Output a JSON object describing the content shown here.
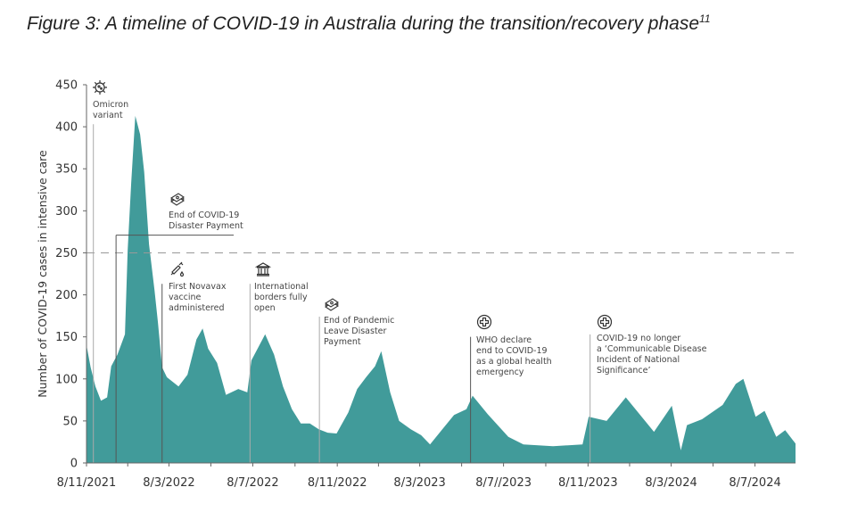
{
  "title": {
    "text": "Figure 3: A timeline of COVID-19 in Australia during the transition/recovery phase",
    "superscript": "11"
  },
  "chart_data": {
    "type": "area",
    "ylabel": "Number of COVID-19 cases in intensive care",
    "xlabel": "",
    "ylim": [
      0,
      450
    ],
    "yticks": [
      0,
      50,
      100,
      150,
      200,
      250,
      300,
      350,
      400,
      450
    ],
    "xlim": [
      "2021-11-08",
      "2024-09-05"
    ],
    "xtick_labels": [
      "8/11/2021",
      "8/3/2022",
      "8/7/2022",
      "8/11/2022",
      "8/3/2023",
      "8/7//2023",
      "8/11/2023",
      "8/3/2024",
      "8/7/2024"
    ],
    "xtick_dates": [
      "2021-11-08",
      "2022-03-08",
      "2022-07-08",
      "2022-11-08",
      "2023-03-08",
      "2023-07-08",
      "2023-11-08",
      "2024-03-08",
      "2024-07-08"
    ],
    "reference_line": {
      "y": 250,
      "style": "dashed",
      "color": "#999999"
    },
    "grid": false,
    "color": "#419b9a",
    "x": [
      "2021-11-08",
      "2021-11-14",
      "2021-11-21",
      "2021-11-29",
      "2021-12-08",
      "2021-12-14",
      "2021-12-23",
      "2022-01-03",
      "2022-01-07",
      "2022-01-12",
      "2022-01-18",
      "2022-01-25",
      "2022-01-31",
      "2022-02-07",
      "2022-02-15",
      "2022-02-20",
      "2022-02-26",
      "2022-03-05",
      "2022-03-22",
      "2022-04-04",
      "2022-04-17",
      "2022-04-26",
      "2022-05-04",
      "2022-05-17",
      "2022-05-30",
      "2022-06-17",
      "2022-06-30",
      "2022-07-06",
      "2022-07-26",
      "2022-08-08",
      "2022-08-21",
      "2022-09-03",
      "2022-09-16",
      "2022-09-29",
      "2022-10-12",
      "2022-10-25",
      "2022-11-07",
      "2022-11-24",
      "2022-12-07",
      "2022-12-20",
      "2023-01-02",
      "2023-01-11",
      "2023-01-24",
      "2023-02-06",
      "2023-02-23",
      "2023-03-10",
      "2023-03-23",
      "2023-04-10",
      "2023-04-27",
      "2023-05-15",
      "2023-05-24",
      "2023-06-15",
      "2023-07-15",
      "2023-08-06",
      "2023-09-18",
      "2023-10-31",
      "2023-11-09",
      "2023-12-05",
      "2024-01-02",
      "2024-02-12",
      "2024-03-09",
      "2024-03-22",
      "2024-03-31",
      "2024-04-22",
      "2024-05-22",
      "2024-06-10",
      "2024-06-21",
      "2024-07-09",
      "2024-07-22",
      "2024-08-08",
      "2024-08-21",
      "2024-09-05"
    ],
    "values": [
      140,
      114,
      91,
      74,
      78,
      115,
      129,
      153,
      254,
      333,
      413,
      391,
      346,
      260,
      205,
      167,
      114,
      102,
      91,
      105,
      147,
      160,
      136,
      119,
      81,
      88,
      84,
      122,
      153,
      129,
      91,
      64,
      47,
      47,
      40,
      36,
      35,
      60,
      88,
      102,
      115,
      133,
      84,
      50,
      40,
      33,
      22,
      40,
      57,
      64,
      80,
      58,
      31,
      22,
      20,
      22,
      55,
      50,
      78,
      37,
      68,
      15,
      45,
      52,
      69,
      94,
      100,
      55,
      62,
      31,
      39,
      23
    ],
    "annotations": [
      {
        "id": "omicron",
        "date": "2021-11-18",
        "top_value": 403,
        "text": "Omicron\nvariant",
        "icon": "virus-icon",
        "line": "#aaaaaa"
      },
      {
        "id": "disaster-payment",
        "date": "2021-12-21",
        "top_value": 271,
        "text": "End of COVID-19\nDisaster Payment",
        "icon": "money-stack-icon",
        "line": "#555555"
      },
      {
        "id": "novavax",
        "date": "2022-02-26",
        "top_value": 213,
        "text": "First Novavax\nvaccine\nadministered",
        "icon": "syringe-icon",
        "line": "#555555"
      },
      {
        "id": "borders",
        "date": "2022-07-04",
        "top_value": 213,
        "text": "International\nborders fully\nopen",
        "icon": "government-building-icon",
        "line": "#aaaaaa"
      },
      {
        "id": "pandemic-leave",
        "date": "2022-10-13",
        "top_value": 174,
        "text": "End of Pandemic\nLeave Disaster\nPayment",
        "icon": "money-stack-icon",
        "line": "#aaaaaa"
      },
      {
        "id": "who",
        "date": "2023-05-21",
        "top_value": 150,
        "text": "WHO declare\nend to COVID-19\nas a global health\nemergency",
        "icon": "medical-cross-icon",
        "line": "#555555"
      },
      {
        "id": "cdins",
        "date": "2023-11-11",
        "top_value": 153,
        "text": "COVID-19 no longer\na ‘Communicable Disease\nIncident of National\nSignificance’",
        "icon": "medical-cross-icon",
        "line": "#aaaaaa"
      }
    ]
  }
}
